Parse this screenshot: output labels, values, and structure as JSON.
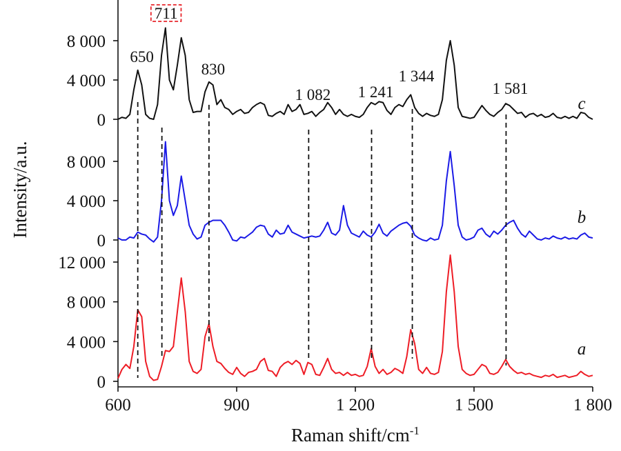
{
  "chart_data": {
    "type": "line",
    "ylabel": "Intensity/a.u.",
    "xlabel": "Raman shift/cm",
    "xlabel_sup": "-1",
    "xlim": [
      600,
      1800
    ],
    "xticks": [
      600,
      900,
      {
        "value": 1200,
        "label": "1 200"
      },
      {
        "value": 1500,
        "label": "1 500"
      },
      {
        "value": 1800,
        "label": "1 800"
      }
    ],
    "peaks": [
      650,
      711,
      830,
      {
        "value": 1082,
        "label": "1 082"
      },
      {
        "value": 1241,
        "label": "1 241"
      },
      {
        "value": 1344,
        "label": "1 344"
      },
      {
        "value": 1581,
        "label": "1 581"
      }
    ],
    "x": [
      600,
      610,
      620,
      630,
      640,
      650,
      660,
      670,
      680,
      690,
      700,
      710,
      720,
      730,
      740,
      750,
      760,
      770,
      780,
      790,
      800,
      810,
      820,
      830,
      840,
      850,
      860,
      870,
      880,
      890,
      900,
      910,
      920,
      930,
      940,
      950,
      960,
      970,
      980,
      990,
      1000,
      1010,
      1020,
      1030,
      1040,
      1050,
      1060,
      1070,
      1080,
      1090,
      1100,
      1110,
      1120,
      1130,
      1140,
      1150,
      1160,
      1170,
      1180,
      1190,
      1200,
      1210,
      1220,
      1230,
      1240,
      1250,
      1260,
      1270,
      1280,
      1290,
      1300,
      1310,
      1320,
      1330,
      1340,
      1350,
      1360,
      1370,
      1380,
      1390,
      1400,
      1410,
      1420,
      1430,
      1440,
      1450,
      1460,
      1470,
      1480,
      1490,
      1500,
      1510,
      1520,
      1530,
      1540,
      1550,
      1560,
      1570,
      1580,
      1590,
      1600,
      1610,
      1620,
      1630,
      1640,
      1650,
      1660,
      1670,
      1680,
      1690,
      1700,
      1710,
      1720,
      1730,
      1740,
      1750,
      1760,
      1770,
      1780,
      1790,
      1800
    ],
    "series": [
      {
        "name": "a",
        "color": "#ee1c25",
        "ylim": [
          -500,
          13000
        ],
        "yticks": [
          0,
          {
            "value": 4000,
            "label": "4 000"
          },
          {
            "value": 8000,
            "label": "8 000"
          },
          {
            "value": 12000,
            "label": "12 000"
          }
        ],
        "values": [
          300,
          1200,
          1700,
          1300,
          3500,
          7200,
          6500,
          2000,
          500,
          100,
          200,
          1500,
          3100,
          3000,
          3500,
          7000,
          10400,
          7000,
          2000,
          1000,
          800,
          1200,
          4500,
          5800,
          3500,
          2000,
          1800,
          1300,
          900,
          700,
          1400,
          800,
          500,
          900,
          1000,
          1200,
          2000,
          2300,
          1100,
          1000,
          500,
          1400,
          1800,
          2000,
          1700,
          2100,
          1800,
          700,
          1900,
          1700,
          700,
          600,
          1400,
          2300,
          1200,
          800,
          900,
          600,
          900,
          600,
          700,
          500,
          600,
          1500,
          3300,
          1500,
          800,
          1200,
          700,
          900,
          1300,
          1100,
          800,
          2500,
          5200,
          3800,
          1200,
          800,
          1400,
          800,
          700,
          900,
          3000,
          9000,
          12700,
          9000,
          3500,
          1200,
          800,
          600,
          700,
          1200,
          1700,
          1500,
          800,
          700,
          900,
          1500,
          2200,
          1500,
          1100,
          800,
          900,
          700,
          800,
          600,
          500,
          400,
          600,
          500,
          700,
          400,
          500,
          600,
          400,
          500,
          600,
          1000,
          700,
          500,
          600
        ]
      },
      {
        "name": "b",
        "color": "#1a1ae6",
        "ylim": [
          -800,
          10900
        ],
        "yticks": [
          0,
          {
            "value": 4000,
            "label": "4 000"
          },
          {
            "value": 8000,
            "label": "8 000"
          }
        ],
        "values": [
          200,
          0,
          0,
          300,
          200,
          800,
          600,
          500,
          100,
          -200,
          300,
          4000,
          10000,
          4000,
          2500,
          3500,
          6500,
          4000,
          1500,
          600,
          100,
          300,
          1500,
          1800,
          2000,
          2000,
          2000,
          1500,
          800,
          0,
          -100,
          300,
          200,
          500,
          800,
          1300,
          1500,
          1400,
          600,
          300,
          1000,
          600,
          700,
          1500,
          800,
          600,
          400,
          200,
          300,
          400,
          300,
          400,
          1000,
          1800,
          700,
          500,
          1000,
          3500,
          1500,
          700,
          500,
          300,
          900,
          500,
          300,
          800,
          1600,
          700,
          400,
          900,
          1200,
          1500,
          1700,
          1800,
          1400,
          500,
          200,
          0,
          -100,
          200,
          0,
          100,
          1500,
          6000,
          9000,
          5500,
          1500,
          300,
          0,
          100,
          300,
          1000,
          1200,
          600,
          300,
          900,
          600,
          1000,
          1500,
          1800,
          2000,
          1200,
          600,
          300,
          900,
          500,
          100,
          0,
          200,
          100,
          400,
          200,
          100,
          300,
          100,
          200,
          100,
          500,
          700,
          300,
          200
        ]
      },
      {
        "name": "c",
        "color": "#111111",
        "ylim": [
          -800,
          12000
        ],
        "yticks": [
          0,
          {
            "value": 4000,
            "label": "4 000"
          },
          {
            "value": 8000,
            "label": "8 000"
          }
        ],
        "values": [
          0,
          200,
          100,
          500,
          3000,
          5000,
          3500,
          500,
          100,
          0,
          1500,
          6500,
          9300,
          4000,
          3000,
          5500,
          8300,
          6500,
          2000,
          700,
          800,
          800,
          2800,
          3800,
          3500,
          1500,
          2000,
          1200,
          1000,
          500,
          800,
          1000,
          600,
          700,
          1200,
          1500,
          1700,
          1500,
          400,
          300,
          600,
          800,
          500,
          1500,
          800,
          1000,
          1500,
          500,
          600,
          800,
          300,
          700,
          1000,
          1700,
          1200,
          500,
          1000,
          500,
          300,
          500,
          300,
          200,
          500,
          1200,
          1700,
          1500,
          1800,
          1700,
          900,
          500,
          1200,
          1500,
          1300,
          2000,
          2500,
          1200,
          600,
          300,
          600,
          400,
          300,
          500,
          2000,
          6000,
          8000,
          5500,
          1200,
          300,
          200,
          100,
          200,
          800,
          1400,
          900,
          500,
          300,
          700,
          1000,
          1600,
          1400,
          1000,
          600,
          700,
          200,
          500,
          600,
          300,
          500,
          200,
          300,
          600,
          200,
          100,
          300,
          100,
          300,
          100,
          700,
          600,
          200,
          0
        ]
      }
    ]
  }
}
